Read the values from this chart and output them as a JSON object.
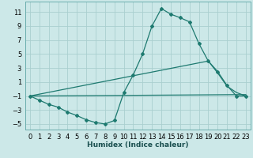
{
  "xlabel": "Humidex (Indice chaleur)",
  "ylabel": "",
  "xlim": [
    -0.5,
    23.5
  ],
  "ylim": [
    -5.8,
    12.5
  ],
  "xticks": [
    0,
    1,
    2,
    3,
    4,
    5,
    6,
    7,
    8,
    9,
    10,
    11,
    12,
    13,
    14,
    15,
    16,
    17,
    18,
    19,
    20,
    21,
    22,
    23
  ],
  "yticks": [
    -5,
    -3,
    -1,
    1,
    3,
    5,
    7,
    9,
    11
  ],
  "bg_color": "#cce8e8",
  "grid_color": "#aacfcf",
  "line_color": "#1e7a70",
  "curve1_x": [
    0,
    1,
    2,
    3,
    4,
    5,
    6,
    7,
    8,
    9,
    10,
    11,
    12,
    13,
    14,
    15,
    16,
    17,
    18,
    19,
    20,
    21,
    22,
    23
  ],
  "curve1_y": [
    -1,
    -1.6,
    -2.2,
    -2.6,
    -3.3,
    -3.8,
    -4.4,
    -4.8,
    -5.0,
    -4.5,
    -0.5,
    2.0,
    5.0,
    9.0,
    11.5,
    10.7,
    10.2,
    9.6,
    6.5,
    4.0,
    2.5,
    0.5,
    -1.0,
    -1.0
  ],
  "curve2_x": [
    0,
    19,
    20,
    21,
    22,
    23
  ],
  "curve2_y": [
    -1.0,
    4.0,
    2.3,
    0.4,
    -0.5,
    -1.0
  ],
  "curve3_x": [
    0,
    23
  ],
  "curve3_y": [
    -1.0,
    -0.8
  ],
  "xlabel_fontsize": 6.5,
  "tick_fontsize": 6
}
